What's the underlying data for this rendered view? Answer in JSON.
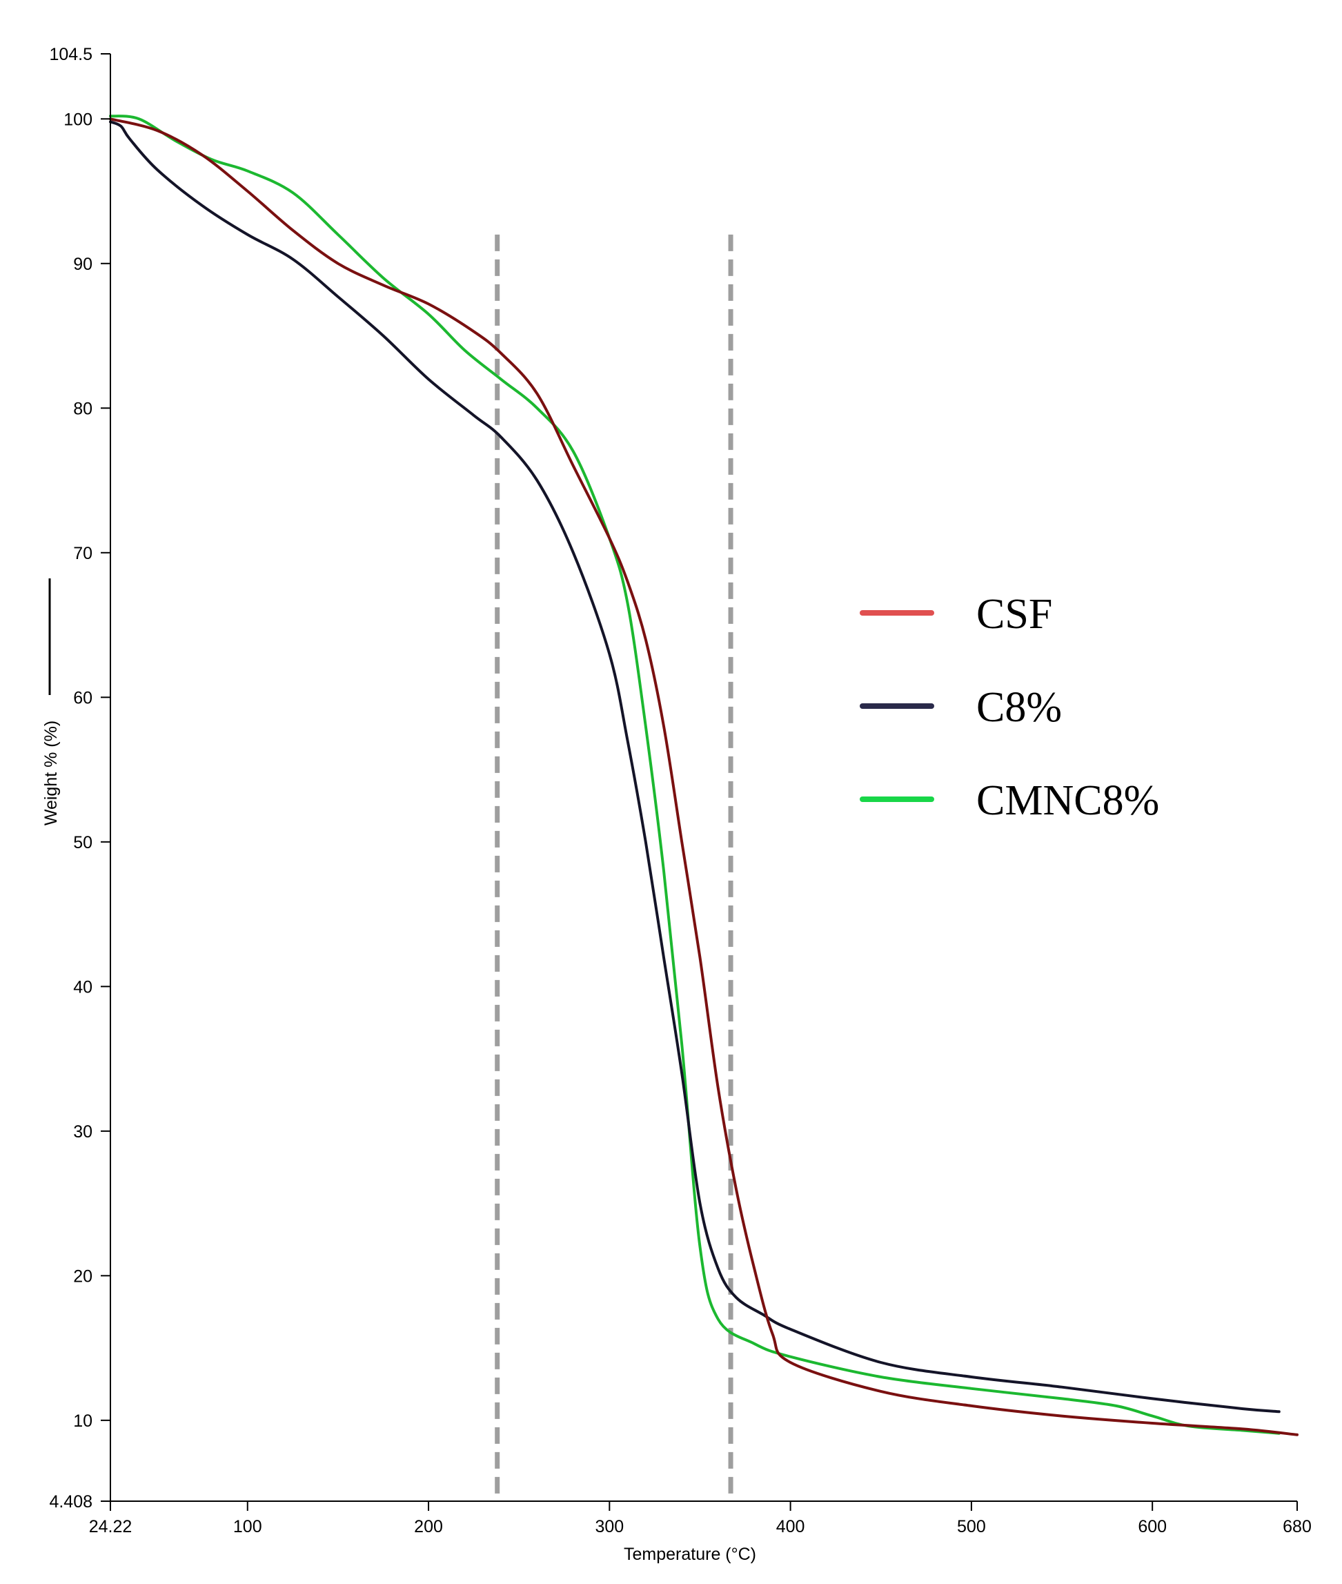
{
  "chart_data": {
    "type": "line",
    "title": "",
    "xlabel": "Temperature (°C)",
    "ylabel": "Weight % (%)",
    "xlim": [
      24.22,
      680
    ],
    "ylim": [
      4.408,
      104.5
    ],
    "x_ticks": [
      {
        "value": 24.22,
        "label": "24.22"
      },
      {
        "value": 100,
        "label": "100"
      },
      {
        "value": 200,
        "label": "200"
      },
      {
        "value": 300,
        "label": "300"
      },
      {
        "value": 400,
        "label": "400"
      },
      {
        "value": 500,
        "label": "500"
      },
      {
        "value": 600,
        "label": "600"
      },
      {
        "value": 680,
        "label": "680"
      }
    ],
    "y_ticks": [
      {
        "value": 4.408,
        "label": "4.408"
      },
      {
        "value": 10,
        "label": "10"
      },
      {
        "value": 20,
        "label": "20"
      },
      {
        "value": 30,
        "label": "30"
      },
      {
        "value": 40,
        "label": "40"
      },
      {
        "value": 50,
        "label": "50"
      },
      {
        "value": 60,
        "label": "60"
      },
      {
        "value": 70,
        "label": "70"
      },
      {
        "value": 80,
        "label": "80"
      },
      {
        "value": 90,
        "label": "90"
      },
      {
        "value": 100,
        "label": "100"
      },
      {
        "value": 104.5,
        "label": "104.5"
      }
    ],
    "grid": false,
    "legend_position": "right",
    "reference_lines": [
      {
        "x": 238,
        "y_top": 92
      },
      {
        "x": 367,
        "y_top": 92
      }
    ],
    "series": [
      {
        "name": "CSF",
        "line_color": "#7a1010",
        "legend_color": "#e05050",
        "points": [
          [
            24.22,
            100
          ],
          [
            50,
            99.2
          ],
          [
            75,
            97.5
          ],
          [
            100,
            95.0
          ],
          [
            125,
            92.3
          ],
          [
            150,
            90.0
          ],
          [
            175,
            88.5
          ],
          [
            200,
            87.2
          ],
          [
            225,
            85.3
          ],
          [
            240,
            83.8
          ],
          [
            260,
            81.0
          ],
          [
            280,
            76.0
          ],
          [
            300,
            71.0
          ],
          [
            310,
            68.0
          ],
          [
            320,
            64.0
          ],
          [
            330,
            58.0
          ],
          [
            340,
            50.0
          ],
          [
            350,
            42.0
          ],
          [
            360,
            33.0
          ],
          [
            370,
            26.0
          ],
          [
            380,
            20.5
          ],
          [
            390,
            16.0
          ],
          [
            400,
            14.0
          ],
          [
            450,
            12.0
          ],
          [
            500,
            11.0
          ],
          [
            550,
            10.3
          ],
          [
            600,
            9.8
          ],
          [
            650,
            9.4
          ],
          [
            680,
            9.0
          ]
        ]
      },
      {
        "name": "C8%",
        "line_color": "#141428",
        "legend_color": "#2a2a4a",
        "points": [
          [
            24.22,
            99.8
          ],
          [
            30,
            99.5
          ],
          [
            35,
            98.6
          ],
          [
            50,
            96.5
          ],
          [
            75,
            94.0
          ],
          [
            100,
            92.0
          ],
          [
            125,
            90.3
          ],
          [
            150,
            87.7
          ],
          [
            175,
            85.0
          ],
          [
            200,
            82.0
          ],
          [
            225,
            79.5
          ],
          [
            240,
            78.0
          ],
          [
            260,
            75.0
          ],
          [
            280,
            70.0
          ],
          [
            300,
            63.0
          ],
          [
            310,
            57.0
          ],
          [
            320,
            50.0
          ],
          [
            330,
            42.0
          ],
          [
            340,
            34.0
          ],
          [
            350,
            25.0
          ],
          [
            360,
            20.5
          ],
          [
            370,
            18.5
          ],
          [
            385,
            17.3
          ],
          [
            400,
            16.3
          ],
          [
            450,
            14.0
          ],
          [
            500,
            13.0
          ],
          [
            550,
            12.3
          ],
          [
            600,
            11.5
          ],
          [
            650,
            10.8
          ],
          [
            670,
            10.6
          ]
        ]
      },
      {
        "name": "CMNC8%",
        "line_color": "#1cb830",
        "legend_color": "#18d648",
        "points": [
          [
            24.22,
            100.2
          ],
          [
            40,
            100.0
          ],
          [
            60,
            98.5
          ],
          [
            80,
            97.2
          ],
          [
            100,
            96.4
          ],
          [
            125,
            94.9
          ],
          [
            150,
            92.0
          ],
          [
            175,
            89.0
          ],
          [
            200,
            86.5
          ],
          [
            220,
            84.0
          ],
          [
            240,
            82.0
          ],
          [
            260,
            80.0
          ],
          [
            280,
            77.0
          ],
          [
            300,
            71.0
          ],
          [
            310,
            66.5
          ],
          [
            320,
            58.0
          ],
          [
            330,
            48.0
          ],
          [
            340,
            36.0
          ],
          [
            350,
            22.0
          ],
          [
            360,
            17.0
          ],
          [
            380,
            15.3
          ],
          [
            400,
            14.4
          ],
          [
            450,
            13.0
          ],
          [
            500,
            12.2
          ],
          [
            550,
            11.5
          ],
          [
            580,
            11.0
          ],
          [
            600,
            10.3
          ],
          [
            620,
            9.6
          ],
          [
            650,
            9.3
          ],
          [
            670,
            9.1
          ]
        ]
      }
    ]
  }
}
